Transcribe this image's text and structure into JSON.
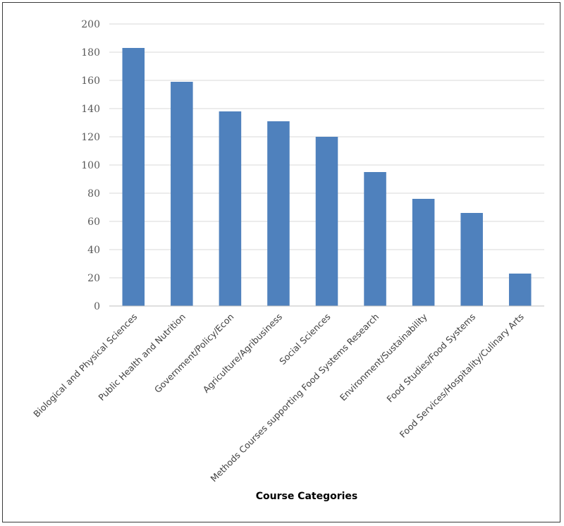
{
  "chart_data": {
    "type": "bar",
    "categories": [
      "Biological and Physical Sciences",
      "Public Health and Nutrition",
      "Government/Policy/Econ",
      "Agriculture/Agribusiness",
      "Social Sciences",
      "Methods Courses supporting Food Systems Research",
      "Environment/Sustainability",
      "Food Studies/Food Systems",
      "Food Services/Hospitality/Culinary Arts"
    ],
    "values": [
      183,
      159,
      138,
      131,
      120,
      95,
      76,
      66,
      23
    ],
    "xlabel": "Course Categories",
    "ylabel": "",
    "ylim": [
      0,
      200
    ],
    "yticks": [
      0,
      20,
      40,
      60,
      80,
      100,
      120,
      140,
      160,
      180,
      200
    ],
    "grid": true,
    "legend": "none",
    "bar_color": "#4f81bd"
  }
}
